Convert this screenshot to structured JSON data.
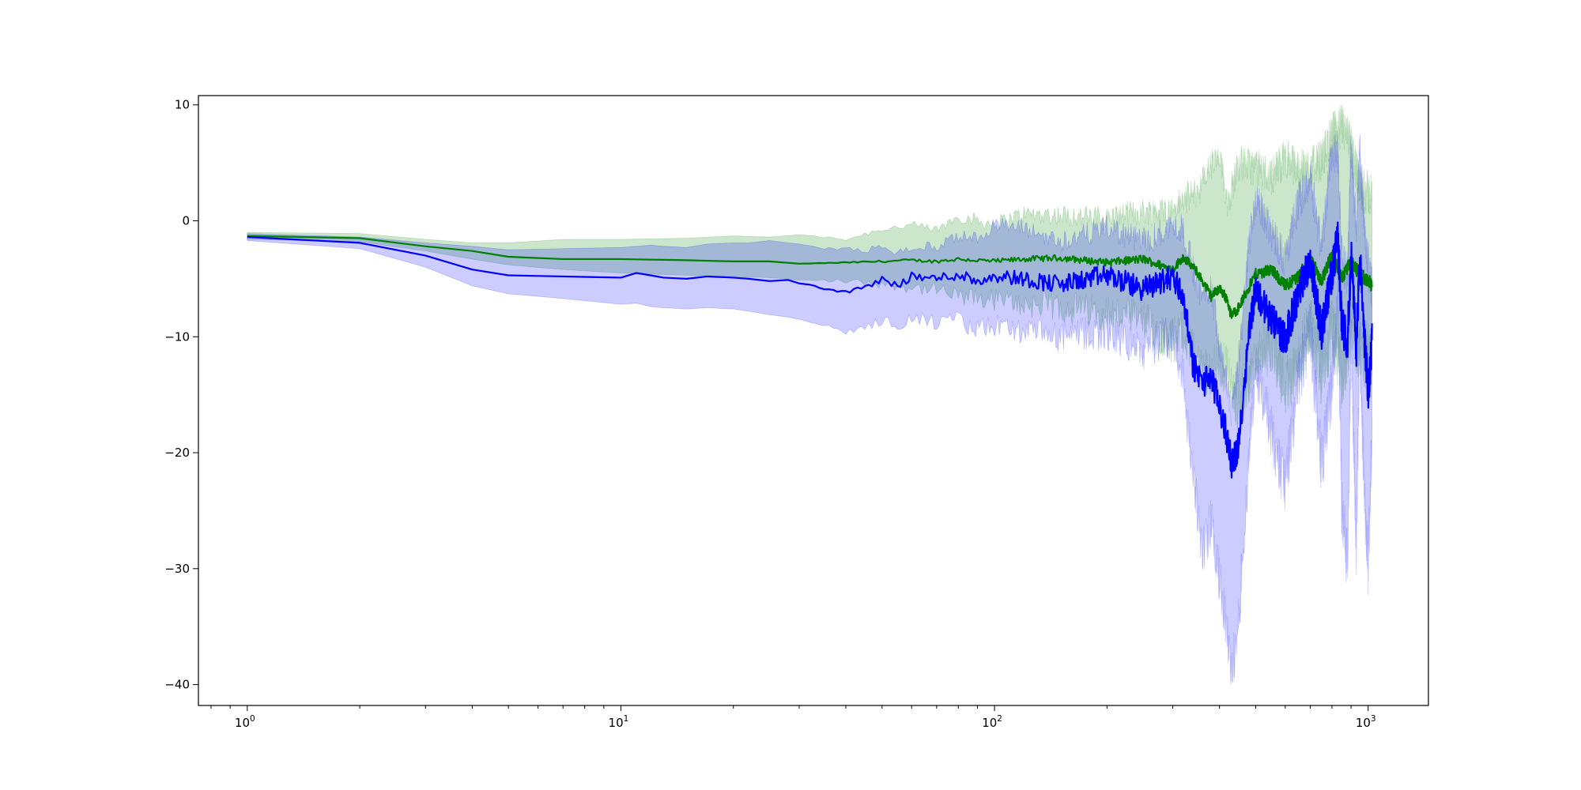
{
  "chart_data": {
    "type": "line",
    "title": "",
    "xlabel": "",
    "ylabel": "",
    "xscale": "log",
    "xlim": [
      0.74,
      1450
    ],
    "ylim": [
      -41.8,
      10.8
    ],
    "grid": false,
    "legend": "none",
    "x_ticks": [
      {
        "value": 1,
        "base": "10",
        "exp": "0"
      },
      {
        "value": 10,
        "base": "10",
        "exp": "1"
      },
      {
        "value": 100,
        "base": "10",
        "exp": "2"
      },
      {
        "value": 1000,
        "base": "10",
        "exp": "3"
      }
    ],
    "y_ticks": [
      {
        "value": 10,
        "label": "10"
      },
      {
        "value": 0,
        "label": "0"
      },
      {
        "value": -10,
        "label": "−10"
      },
      {
        "value": -20,
        "label": "−20"
      },
      {
        "value": -30,
        "label": "−30"
      },
      {
        "value": -40,
        "label": "−40"
      }
    ],
    "series": [
      {
        "color": "#008000",
        "band_color": "#008000",
        "band_opacity": 0.2,
        "x": [
          1,
          2,
          3,
          4,
          5,
          7,
          10,
          15,
          20,
          25,
          30,
          40,
          50,
          60,
          70,
          80,
          100,
          120,
          150,
          200,
          250,
          300,
          320,
          350,
          380,
          400,
          420,
          430,
          450,
          500,
          550,
          600,
          650,
          700,
          750,
          800,
          850,
          900,
          950,
          1000,
          1024
        ],
        "mean": [
          -1.3,
          -1.5,
          -2.2,
          -2.6,
          -3.1,
          -3.3,
          -3.3,
          -3.4,
          -3.5,
          -3.5,
          -3.7,
          -3.6,
          -3.5,
          -3.4,
          -3.5,
          -3.3,
          -3.5,
          -3.3,
          -3.2,
          -3.6,
          -3.3,
          -4.2,
          -3.1,
          -4.5,
          -6.5,
          -5.8,
          -6.8,
          -8.2,
          -7.5,
          -4.6,
          -4.2,
          -5.6,
          -4.8,
          -3.2,
          -5.2,
          -2.9,
          -5.0,
          -3.5,
          -4.6,
          -5.2,
          -5.5
        ],
        "upper": [
          -1.0,
          -1.1,
          -1.6,
          -1.9,
          -1.9,
          -1.6,
          -1.6,
          -1.5,
          -1.3,
          -1.4,
          -1.2,
          -1.6,
          -0.7,
          -0.4,
          -0.8,
          0.4,
          -0.3,
          0.6,
          0.5,
          0.2,
          0.8,
          0.9,
          1.8,
          2.5,
          4.8,
          5.2,
          1.8,
          2.6,
          5.0,
          4.6,
          3.8,
          5.5,
          4.4,
          4.6,
          5.2,
          7.5,
          8.2,
          6.5,
          2.8,
          2.4,
          2.2
        ],
        "lower": [
          -1.5,
          -1.7,
          -2.6,
          -3.3,
          -3.8,
          -4.2,
          -4.5,
          -4.7,
          -4.8,
          -4.9,
          -5.1,
          -5.2,
          -5.4,
          -5.7,
          -6.0,
          -6.6,
          -6.8,
          -7.2,
          -7.4,
          -7.9,
          -8.6,
          -10.4,
          -9.4,
          -12.5,
          -13.0,
          -12.4,
          -12.8,
          -14.6,
          -15.8,
          -12.2,
          -10.6,
          -14.2,
          -12.6,
          -8.8,
          -13.6,
          -9.3,
          -13.6,
          -9.5,
          -10.8,
          -11.8,
          -12.4
        ]
      },
      {
        "color": "#0000ff",
        "band_color": "#0000ff",
        "band_opacity": 0.2,
        "x": [
          1,
          2,
          3,
          4,
          5,
          7,
          10,
          11,
          12,
          13,
          15,
          17,
          20,
          22,
          25,
          28,
          30,
          33,
          35,
          40,
          45,
          50,
          55,
          60,
          70,
          80,
          90,
          100,
          120,
          150,
          200,
          250,
          300,
          320,
          340,
          360,
          380,
          400,
          420,
          430,
          450,
          480,
          500,
          550,
          600,
          650,
          700,
          750,
          800,
          830,
          850,
          880,
          900,
          930,
          950,
          980,
          1000,
          1024
        ],
        "mean": [
          -1.4,
          -1.9,
          -3.0,
          -4.2,
          -4.7,
          -4.8,
          -4.9,
          -4.5,
          -4.7,
          -4.9,
          -5.0,
          -4.8,
          -4.9,
          -5.0,
          -5.2,
          -5.1,
          -5.4,
          -5.6,
          -5.9,
          -6.1,
          -5.8,
          -5.0,
          -5.6,
          -4.8,
          -5.0,
          -4.6,
          -5.2,
          -4.7,
          -5.0,
          -5.5,
          -4.7,
          -5.9,
          -4.8,
          -6.5,
          -12.4,
          -14.0,
          -13.4,
          -16.0,
          -18.8,
          -20.9,
          -19.5,
          -9.3,
          -6.0,
          -8.5,
          -10.2,
          -6.3,
          -3.3,
          -9.6,
          -4.5,
          -1.5,
          -8.8,
          -10.5,
          -3.0,
          -11.0,
          -3.1,
          -10.6,
          -14.8,
          -10.5
        ],
        "upper": [
          -1.1,
          -1.4,
          -1.9,
          -2.2,
          -2.5,
          -2.4,
          -2.3,
          -2.2,
          -2.1,
          -2.2,
          -2.3,
          -2.0,
          -1.9,
          -1.9,
          -1.7,
          -1.9,
          -2.0,
          -2.2,
          -2.4,
          -2.4,
          -2.6,
          -2.1,
          -2.8,
          -2.3,
          -2.2,
          -1.4,
          -1.4,
          -0.3,
          -0.7,
          -1.8,
          -0.6,
          -1.8,
          -0.5,
          -0.8,
          -4.2,
          -6.6,
          -5.7,
          -10.4,
          -14.0,
          -16.8,
          -12.4,
          -1.8,
          1.8,
          -0.8,
          -3.4,
          1.6,
          3.8,
          -2.3,
          6.2,
          5.8,
          -2.9,
          -5.1,
          6.3,
          -0.4,
          6.0,
          -1.6,
          -3.8,
          -5.8
        ],
        "lower": [
          -1.7,
          -2.4,
          -4.0,
          -5.6,
          -6.3,
          -6.7,
          -7.2,
          -7.1,
          -7.4,
          -7.5,
          -7.6,
          -7.5,
          -7.6,
          -7.8,
          -8.1,
          -8.3,
          -8.5,
          -8.8,
          -9.0,
          -9.6,
          -9.2,
          -8.6,
          -9.0,
          -8.4,
          -8.8,
          -8.6,
          -9.4,
          -9.0,
          -9.6,
          -10.0,
          -9.6,
          -11.2,
          -9.6,
          -13.6,
          -22.0,
          -28.5,
          -26.0,
          -31.0,
          -35.8,
          -39.3,
          -34.5,
          -20.2,
          -12.4,
          -18.4,
          -22.8,
          -13.8,
          -9.6,
          -21.0,
          -14.0,
          -7.5,
          -25.0,
          -29.5,
          -9.8,
          -28.4,
          -10.6,
          -25.6,
          -29.6,
          -18.2
        ]
      }
    ]
  }
}
